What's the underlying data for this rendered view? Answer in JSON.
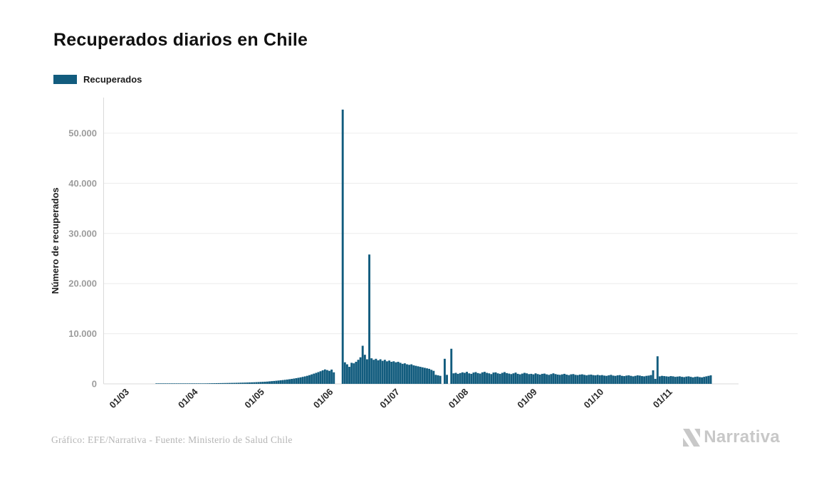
{
  "header": {
    "title": "Recuperados diarios en Chile"
  },
  "legend": {
    "items": [
      {
        "label": "Recuperados",
        "color": "#125c7e"
      }
    ]
  },
  "footer": {
    "credit": "Gráfico: EFE/Narrativa - Fuente: Ministerio de Salud Chile"
  },
  "branding": {
    "logo_text": "Narrativa",
    "color": "#c8c8c8"
  },
  "chart_data": {
    "type": "bar",
    "title": "Recuperados diarios en Chile",
    "xlabel": "",
    "ylabel": "Número de recuperados",
    "series_name": "Recuperados",
    "bar_color": "#125c7e",
    "grid": true,
    "legend_position": "top-left",
    "ylim": [
      0,
      56500
    ],
    "y_ticks": [
      {
        "label": "0",
        "value": 0
      },
      {
        "label": "10.000",
        "value": 10000
      },
      {
        "label": "20.000",
        "value": 20000
      },
      {
        "label": "30.000",
        "value": 30000
      },
      {
        "label": "40.000",
        "value": 40000
      },
      {
        "label": "50.000",
        "value": 50000
      }
    ],
    "frequency": "daily",
    "x_start_date": "01/03/2020",
    "x_end_date": "21/11/2020",
    "x_ticks": [
      {
        "label": "01/03",
        "index": 0
      },
      {
        "label": "01/04",
        "index": 31
      },
      {
        "label": "01/05",
        "index": 61
      },
      {
        "label": "01/06",
        "index": 92
      },
      {
        "label": "01/07",
        "index": 122
      },
      {
        "label": "01/08",
        "index": 153
      },
      {
        "label": "01/09",
        "index": 184
      },
      {
        "label": "01/10",
        "index": 214
      },
      {
        "label": "01/11",
        "index": 245
      }
    ],
    "values": [
      0,
      0,
      0,
      0,
      0,
      0,
      0,
      0,
      0,
      0,
      0,
      0,
      0,
      0,
      0,
      2,
      3,
      4,
      5,
      6,
      8,
      10,
      12,
      15,
      18,
      22,
      26,
      30,
      36,
      43,
      50,
      58,
      65,
      72,
      80,
      88,
      95,
      102,
      110,
      118,
      125,
      132,
      140,
      148,
      155,
      163,
      170,
      178,
      186,
      194,
      202,
      212,
      222,
      234,
      246,
      258,
      272,
      286,
      302,
      320,
      340,
      360,
      382,
      405,
      430,
      458,
      500,
      540,
      580,
      622,
      665,
      710,
      758,
      810,
      865,
      925,
      990,
      1060,
      1135,
      1215,
      1300,
      1395,
      1495,
      1610,
      1740,
      1890,
      2040,
      2190,
      2350,
      2520,
      2700,
      2880,
      2750,
      2600,
      2850,
      2300,
      0,
      0,
      0,
      54700,
      4300,
      3900,
      3400,
      4200,
      4100,
      4400,
      4800,
      5300,
      7600,
      5800,
      4900,
      25800,
      5100,
      4800,
      5000,
      4700,
      4900,
      4600,
      4800,
      4500,
      4650,
      4400,
      4500,
      4300,
      4400,
      4200,
      4000,
      4100,
      3900,
      3800,
      3900,
      3700,
      3600,
      3500,
      3400,
      3300,
      3200,
      3100,
      3000,
      2800,
      2600,
      1800,
      1700,
      1600,
      0,
      5000,
      1800,
      0,
      7000,
      2100,
      2200,
      2000,
      2150,
      2300,
      2200,
      2400,
      2100,
      2000,
      2250,
      2350,
      2150,
      2050,
      2300,
      2400,
      2200,
      2100,
      1950,
      2250,
      2300,
      2100,
      2000,
      2200,
      2350,
      2150,
      2050,
      1950,
      2100,
      2250,
      2000,
      1900,
      2050,
      2200,
      2100,
      1950,
      2000,
      1900,
      2100,
      1950,
      1850,
      2000,
      2050,
      1900,
      1800,
      1950,
      2100,
      1950,
      1850,
      1800,
      1900,
      2000,
      1850,
      1750,
      1900,
      1950,
      1800,
      1750,
      1850,
      1900,
      1800,
      1700,
      1800,
      1850,
      1750,
      1700,
      1800,
      1700,
      1750,
      1650,
      1600,
      1700,
      1800,
      1650,
      1600,
      1700,
      1750,
      1600,
      1550,
      1650,
      1700,
      1600,
      1500,
      1600,
      1700,
      1650,
      1550,
      1500,
      1600,
      1650,
      1750,
      2700,
      1000,
      5500,
      1500,
      1600,
      1550,
      1500,
      1450,
      1550,
      1500,
      1400,
      1450,
      1500,
      1400,
      1350,
      1450,
      1500,
      1400,
      1300,
      1400,
      1450,
      1350,
      1300,
      1400,
      1500,
      1600,
      1700
    ]
  }
}
